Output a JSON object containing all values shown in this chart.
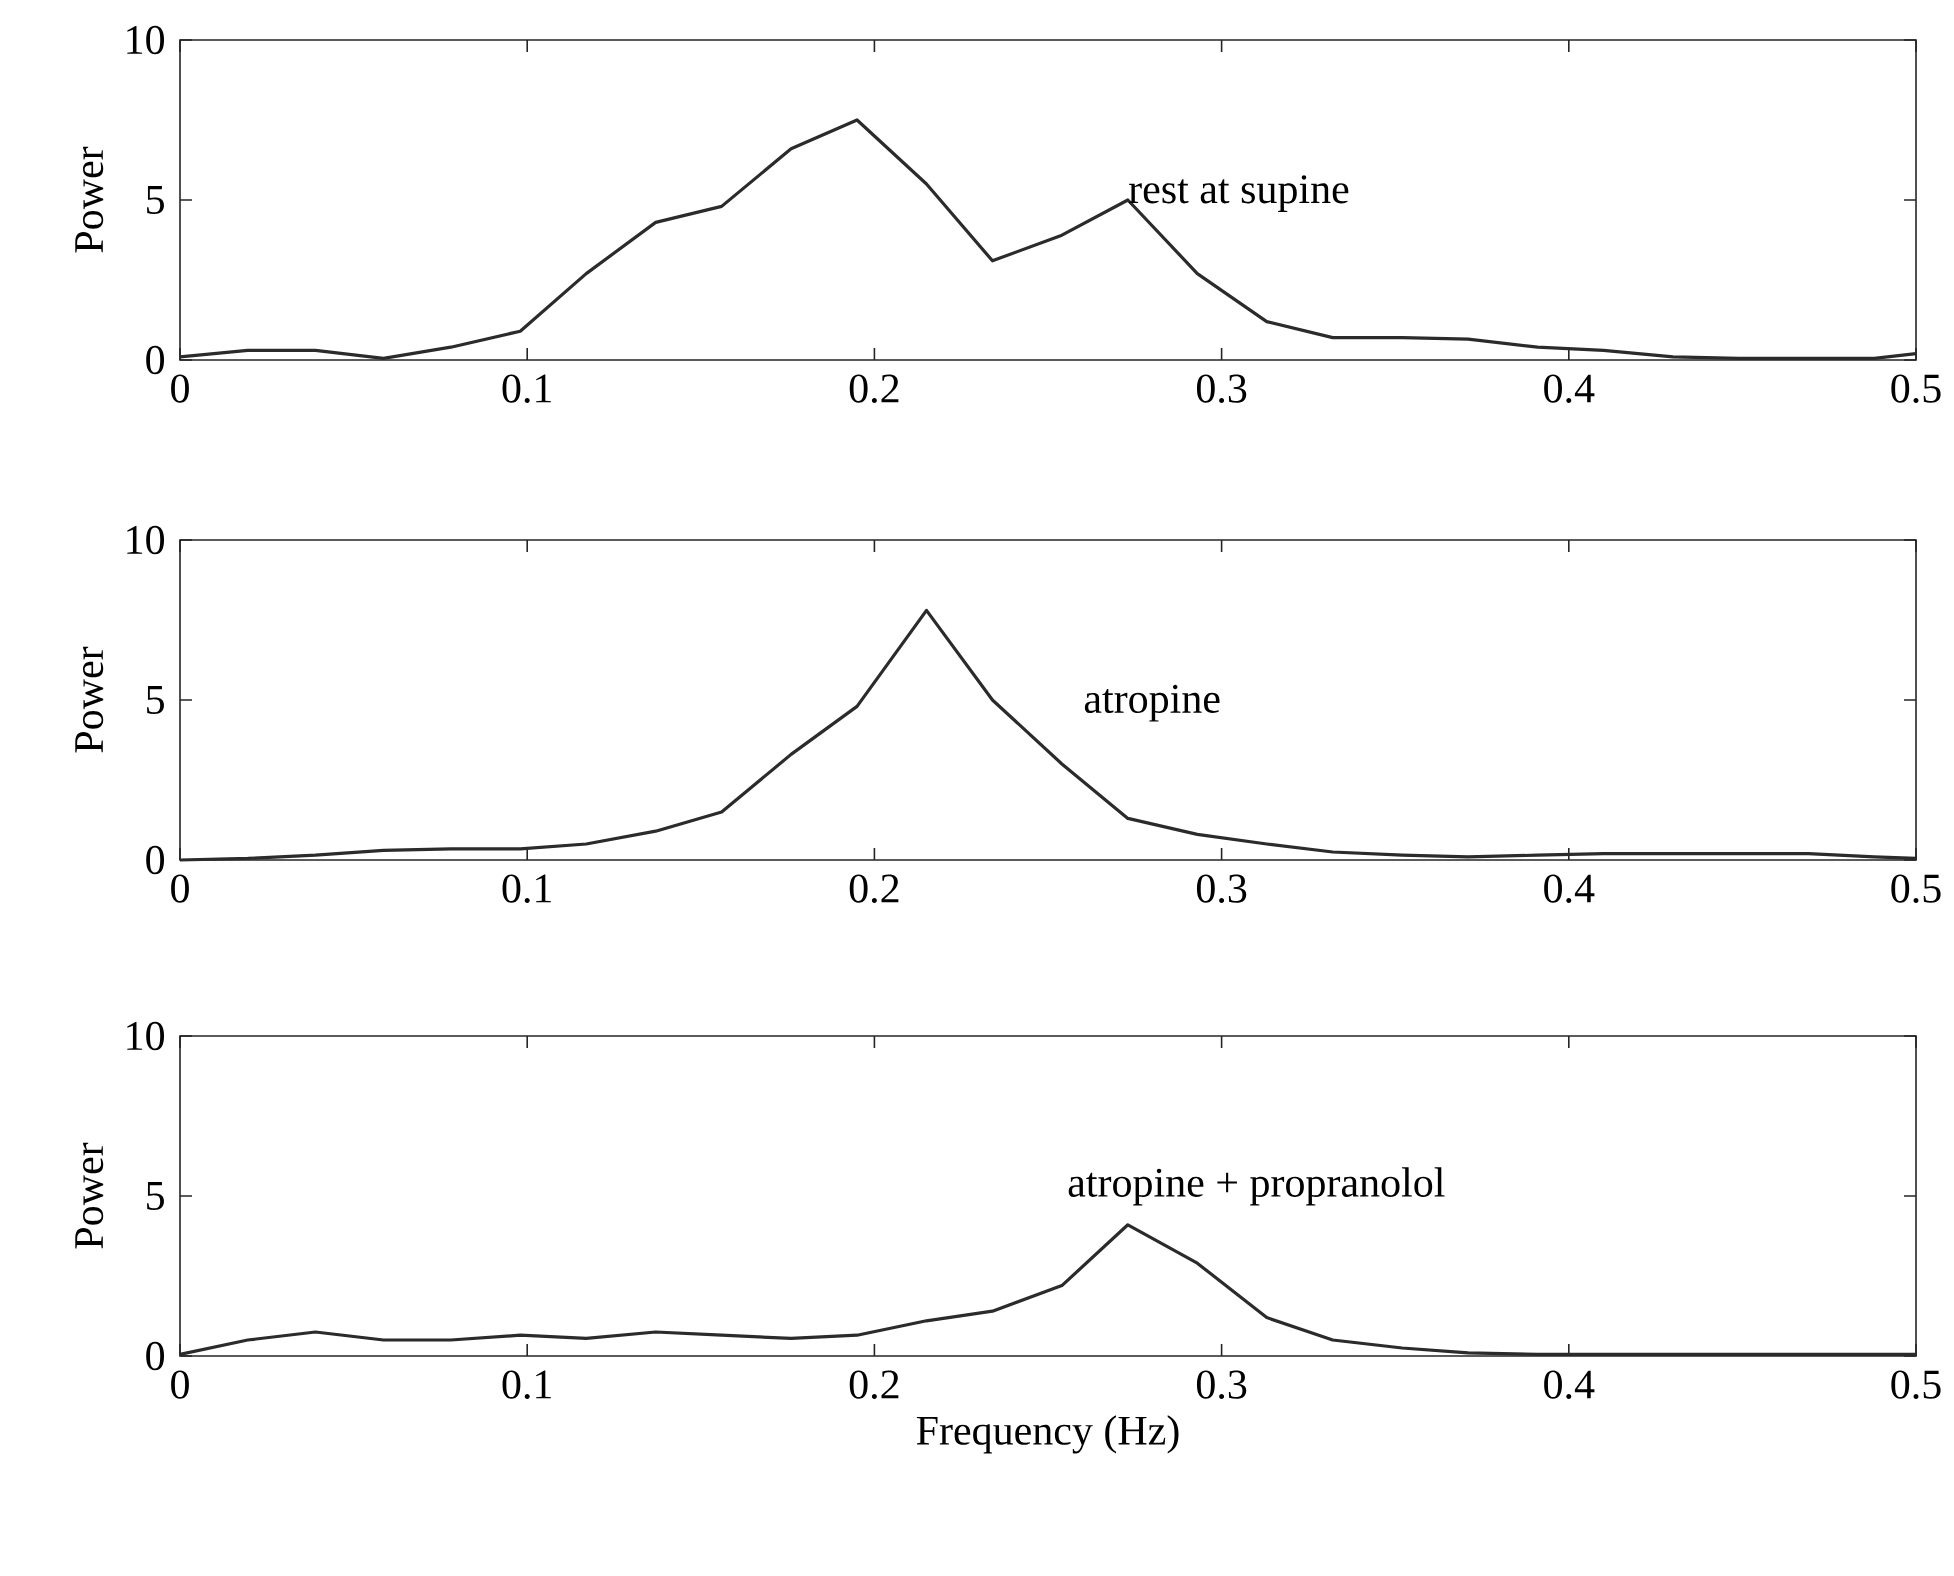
{
  "chart_data": [
    {
      "type": "line",
      "ylabel": "Power",
      "annotations": [
        "rest at supine"
      ],
      "xlim": [
        0,
        0.5
      ],
      "ylim": [
        0,
        10
      ],
      "xticks": [
        0,
        0.1,
        0.2,
        0.3,
        0.4,
        0.5
      ],
      "yticks": [
        0,
        5,
        10
      ],
      "series": [
        {
          "color": "#2b2b2b",
          "x": [
            0,
            0.0195,
            0.039,
            0.0586,
            0.078,
            0.098,
            0.117,
            0.137,
            0.156,
            0.176,
            0.195,
            0.215,
            0.234,
            0.254,
            0.273,
            0.293,
            0.313,
            0.332,
            0.352,
            0.371,
            0.391,
            0.41,
            0.43,
            0.449,
            0.469,
            0.488,
            0.5
          ],
          "values": [
            0.1,
            0.3,
            0.3,
            0.05,
            0.4,
            0.9,
            2.7,
            4.3,
            4.8,
            6.6,
            7.5,
            5.5,
            3.1,
            3.9,
            5.0,
            2.7,
            1.2,
            0.7,
            0.7,
            0.65,
            0.4,
            0.3,
            0.1,
            0.05,
            0.05,
            0.05,
            0.2
          ]
        }
      ]
    },
    {
      "type": "line",
      "ylabel": "Power",
      "annotations": [
        "atropine"
      ],
      "xlim": [
        0,
        0.5
      ],
      "ylim": [
        0,
        10
      ],
      "xticks": [
        0,
        0.1,
        0.2,
        0.3,
        0.4,
        0.5
      ],
      "yticks": [
        0,
        5,
        10
      ],
      "series": [
        {
          "color": "#2b2b2b",
          "x": [
            0,
            0.0195,
            0.039,
            0.0586,
            0.078,
            0.098,
            0.117,
            0.137,
            0.156,
            0.176,
            0.195,
            0.215,
            0.234,
            0.254,
            0.273,
            0.293,
            0.313,
            0.332,
            0.352,
            0.371,
            0.391,
            0.41,
            0.43,
            0.449,
            0.469,
            0.488,
            0.5
          ],
          "values": [
            0,
            0.05,
            0.15,
            0.3,
            0.35,
            0.35,
            0.5,
            0.9,
            1.5,
            3.3,
            4.8,
            7.8,
            5.0,
            3.0,
            1.3,
            0.8,
            0.5,
            0.25,
            0.15,
            0.1,
            0.15,
            0.2,
            0.2,
            0.2,
            0.2,
            0.1,
            0.05
          ]
        }
      ]
    },
    {
      "type": "line",
      "ylabel": "Power",
      "xlabel": "Frequency (Hz)",
      "annotations": [
        "atropine + propranolol"
      ],
      "xlim": [
        0,
        0.5
      ],
      "ylim": [
        0,
        10
      ],
      "xticks": [
        0,
        0.1,
        0.2,
        0.3,
        0.4,
        0.5
      ],
      "yticks": [
        0,
        5,
        10
      ],
      "series": [
        {
          "color": "#2b2b2b",
          "x": [
            0,
            0.0195,
            0.039,
            0.0586,
            0.078,
            0.098,
            0.117,
            0.137,
            0.156,
            0.176,
            0.195,
            0.215,
            0.234,
            0.254,
            0.273,
            0.293,
            0.313,
            0.332,
            0.352,
            0.371,
            0.391,
            0.41,
            0.43,
            0.449,
            0.469,
            0.488,
            0.5
          ],
          "values": [
            0.05,
            0.5,
            0.75,
            0.5,
            0.5,
            0.65,
            0.55,
            0.75,
            0.65,
            0.55,
            0.65,
            1.1,
            1.4,
            2.2,
            4.1,
            2.9,
            1.2,
            0.5,
            0.25,
            0.1,
            0.05,
            0.05,
            0.05,
            0.05,
            0.05,
            0.05,
            0.05
          ]
        }
      ]
    }
  ]
}
